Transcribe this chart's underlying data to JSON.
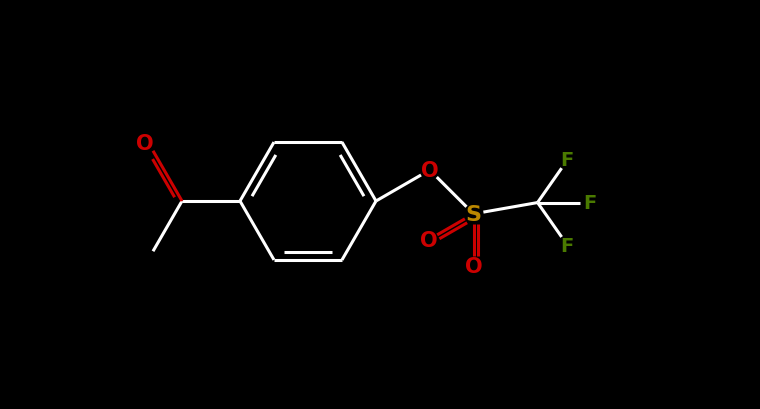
{
  "bg_color": "#000000",
  "bond_color": "#ffffff",
  "bond_width": 2.2,
  "o_color": "#cc0000",
  "s_color": "#bb8800",
  "f_color": "#4a7a00",
  "figsize": [
    7.6,
    4.1
  ],
  "dpi": 100,
  "font_size": 14,
  "font_weight": "bold",
  "xlim": [
    0,
    760
  ],
  "ylim": [
    0,
    410
  ]
}
